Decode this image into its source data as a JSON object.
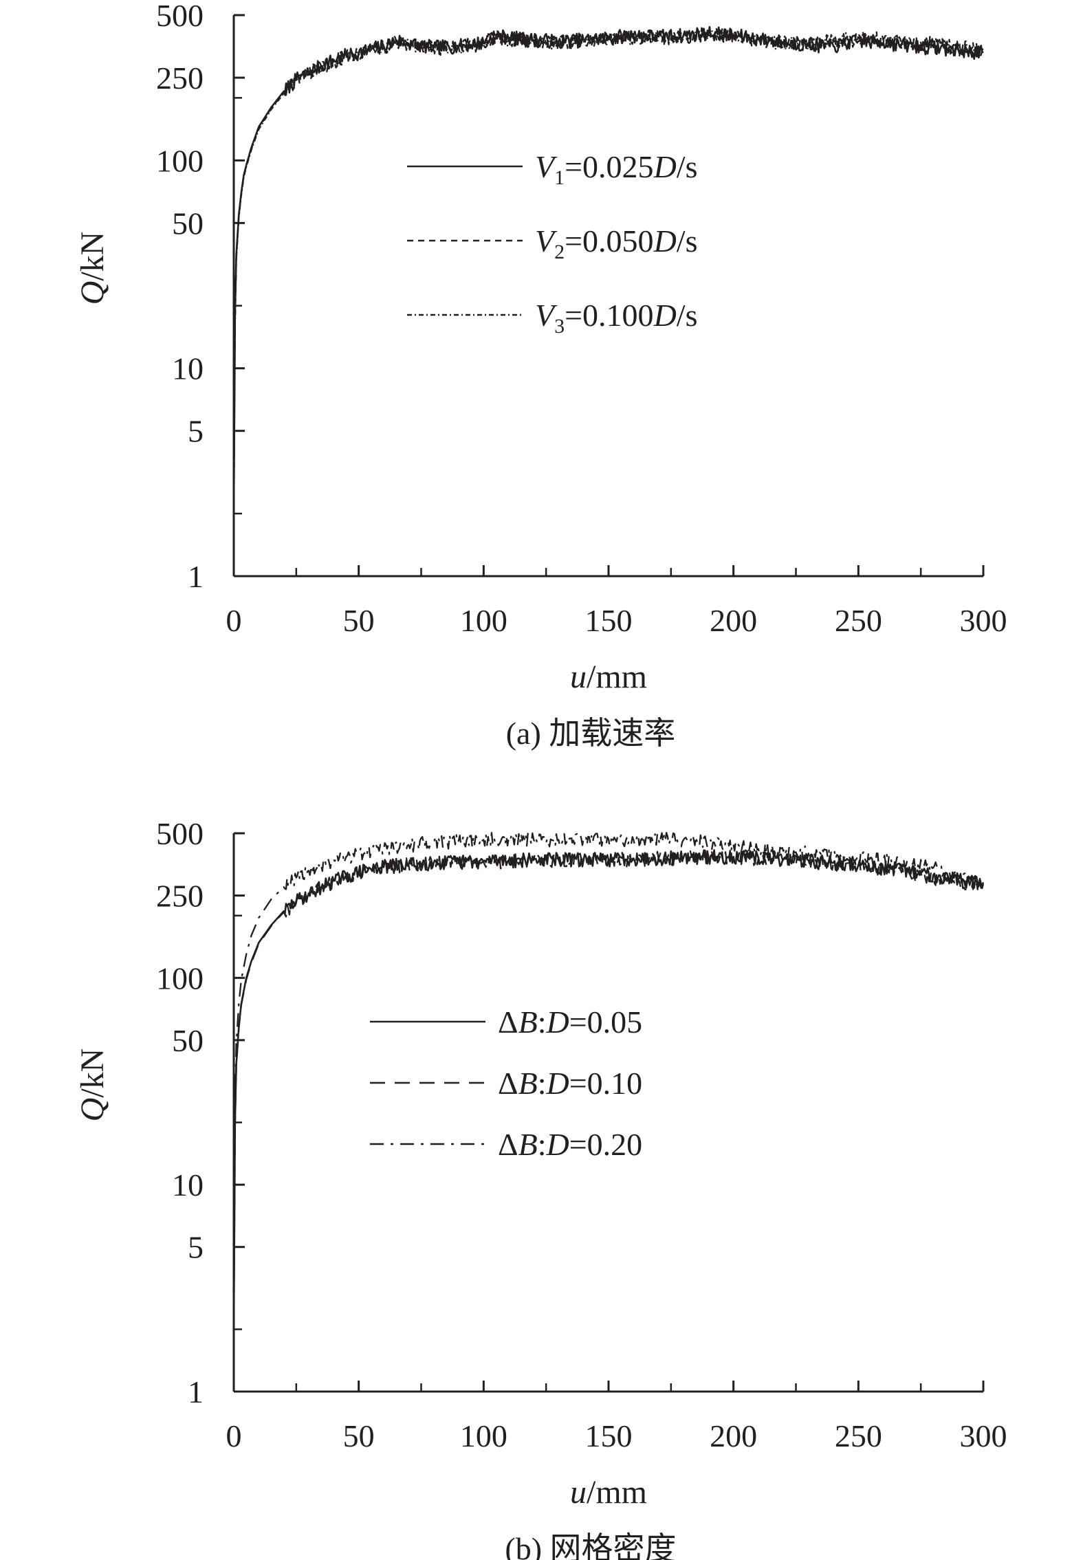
{
  "chart_data": [
    {
      "id": "a",
      "type": "line",
      "caption": "(a) 加载速率",
      "xlabel": {
        "var": "u",
        "unit": "/mm"
      },
      "ylabel": {
        "var": "Q",
        "unit": "/kN"
      },
      "xlim": [
        0,
        300
      ],
      "ylim": [
        1,
        500
      ],
      "yscale": "log",
      "xticks": [
        0,
        50,
        100,
        150,
        200,
        250,
        300
      ],
      "yticks": [
        1,
        5,
        10,
        50,
        100,
        250,
        500
      ],
      "grid": false,
      "legend_position": "center",
      "series": [
        {
          "name": "V1=0.025D/s",
          "legend": {
            "var": "V",
            "sub": "1",
            "rest": "=0.025",
            "ivar": "D",
            "tail": "/s"
          },
          "style": "solid",
          "x": [
            0,
            0.5,
            1,
            2,
            3,
            4,
            5,
            7,
            10,
            15,
            20,
            25,
            30,
            35,
            40,
            45,
            50,
            55,
            60,
            65,
            70,
            80,
            90,
            100,
            105,
            110,
            120,
            130,
            140,
            150,
            160,
            170,
            180,
            190,
            200,
            210,
            220,
            230,
            240,
            250,
            260,
            270,
            280,
            290,
            300
          ],
          "y": [
            2,
            18,
            35,
            55,
            70,
            85,
            95,
            115,
            145,
            180,
            215,
            245,
            265,
            285,
            305,
            320,
            330,
            345,
            355,
            380,
            365,
            350,
            355,
            370,
            400,
            390,
            380,
            375,
            380,
            390,
            400,
            395,
            400,
            410,
            400,
            385,
            370,
            360,
            355,
            375,
            370,
            355,
            350,
            340,
            330
          ]
        },
        {
          "name": "V2=0.050D/s",
          "legend": {
            "var": "V",
            "sub": "2",
            "rest": "=0.050",
            "ivar": "D",
            "tail": "/s"
          },
          "style": "dashed",
          "x": [
            0,
            0.5,
            1,
            2,
            3,
            4,
            5,
            7,
            10,
            15,
            20,
            25,
            30,
            35,
            40,
            45,
            50,
            55,
            60,
            65,
            70,
            80,
            90,
            100,
            105,
            110,
            120,
            130,
            140,
            150,
            160,
            170,
            180,
            190,
            200,
            210,
            220,
            230,
            240,
            250,
            260,
            270,
            280,
            290,
            300
          ],
          "y": [
            2,
            17,
            34,
            54,
            69,
            84,
            94,
            113,
            143,
            178,
            212,
            243,
            262,
            282,
            302,
            318,
            328,
            342,
            352,
            375,
            362,
            348,
            352,
            366,
            396,
            386,
            378,
            372,
            378,
            386,
            396,
            390,
            396,
            405,
            396,
            380,
            368,
            362,
            372,
            385,
            378,
            362,
            370,
            345,
            335
          ]
        },
        {
          "name": "V3=0.100D/s",
          "legend": {
            "var": "V",
            "sub": "3",
            "rest": "=0.100",
            "ivar": "D",
            "tail": "/s"
          },
          "style": "dashdot-fine",
          "x": [
            0,
            0.5,
            1,
            2,
            3,
            4,
            5,
            7,
            10,
            15,
            20,
            25,
            30,
            35,
            40,
            45,
            50,
            55,
            60,
            65,
            70,
            80,
            90,
            100,
            105,
            110,
            120,
            130,
            140,
            150,
            160,
            170,
            180,
            190,
            200,
            210,
            220,
            230,
            240,
            250,
            260,
            270,
            280,
            290,
            300
          ],
          "y": [
            2,
            16,
            33,
            53,
            68,
            83,
            93,
            112,
            141,
            176,
            210,
            240,
            258,
            280,
            300,
            315,
            326,
            340,
            350,
            372,
            360,
            346,
            350,
            364,
            394,
            384,
            376,
            370,
            376,
            384,
            394,
            388,
            394,
            402,
            394,
            378,
            366,
            365,
            375,
            390,
            382,
            365,
            360,
            350,
            340
          ]
        }
      ]
    },
    {
      "id": "b",
      "type": "line",
      "caption": "(b) 网格密度",
      "xlabel": {
        "var": "u",
        "unit": "/mm"
      },
      "ylabel": {
        "var": "Q",
        "unit": "/kN"
      },
      "xlim": [
        0,
        300
      ],
      "ylim": [
        1,
        500
      ],
      "yscale": "log",
      "xticks": [
        0,
        50,
        100,
        150,
        200,
        250,
        300
      ],
      "yticks": [
        1,
        5,
        10,
        50,
        100,
        250,
        500
      ],
      "grid": false,
      "legend_position": "center",
      "series": [
        {
          "name": "ΔB:D=0.05",
          "legend": {
            "pre": "Δ",
            "ivar": "B",
            "mid": ":",
            "ivar2": "D",
            "tail": "=0.05"
          },
          "style": "solid",
          "x": [
            0,
            0.5,
            1,
            2,
            3,
            5,
            7,
            10,
            15,
            20,
            25,
            30,
            35,
            40,
            45,
            50,
            55,
            60,
            70,
            80,
            90,
            100,
            110,
            120,
            130,
            140,
            150,
            160,
            170,
            180,
            190,
            200,
            210,
            220,
            230,
            240,
            250,
            260,
            270,
            280,
            290,
            300
          ],
          "y": [
            2,
            20,
            38,
            58,
            75,
            100,
            120,
            148,
            180,
            210,
            235,
            255,
            275,
            295,
            310,
            325,
            335,
            345,
            355,
            360,
            365,
            365,
            370,
            372,
            375,
            372,
            375,
            378,
            380,
            382,
            385,
            385,
            380,
            375,
            370,
            360,
            350,
            340,
            330,
            315,
            300,
            285
          ]
        },
        {
          "name": "ΔB:D=0.10",
          "legend": {
            "pre": "Δ",
            "ivar": "B",
            "mid": ":",
            "ivar2": "D",
            "tail": "=0.10"
          },
          "style": "dashed-long",
          "x": [
            0,
            0.5,
            1,
            2,
            3,
            5,
            7,
            10,
            15,
            20,
            25,
            30,
            35,
            40,
            45,
            50,
            55,
            60,
            70,
            80,
            90,
            100,
            110,
            120,
            130,
            140,
            150,
            160,
            170,
            180,
            190,
            200,
            210,
            220,
            230,
            240,
            250,
            260,
            270,
            280,
            290,
            300
          ],
          "y": [
            2,
            19,
            37,
            57,
            74,
            98,
            118,
            146,
            178,
            208,
            232,
            252,
            272,
            292,
            308,
            322,
            332,
            342,
            352,
            358,
            362,
            362,
            368,
            370,
            372,
            370,
            372,
            376,
            378,
            380,
            383,
            382,
            378,
            372,
            366,
            358,
            348,
            338,
            325,
            305,
            290,
            290
          ]
        },
        {
          "name": "ΔB:D=0.20",
          "legend": {
            "pre": "Δ",
            "ivar": "B",
            "mid": ":",
            "ivar2": "D",
            "tail": "=0.20"
          },
          "style": "dashdot",
          "x": [
            0,
            0.5,
            1,
            2,
            3,
            5,
            7,
            10,
            15,
            20,
            25,
            30,
            35,
            40,
            45,
            50,
            55,
            60,
            70,
            80,
            90,
            100,
            110,
            120,
            130,
            140,
            150,
            160,
            170,
            180,
            190,
            200,
            210,
            220,
            230,
            240,
            250,
            260,
            270,
            280,
            290,
            300
          ],
          "y": [
            2,
            24,
            48,
            75,
            98,
            130,
            160,
            195,
            240,
            275,
            305,
            330,
            350,
            370,
            385,
            400,
            410,
            420,
            440,
            450,
            460,
            465,
            470,
            468,
            465,
            470,
            468,
            465,
            470,
            465,
            450,
            440,
            420,
            410,
            400,
            390,
            380,
            370,
            360,
            340,
            310,
            285
          ]
        }
      ]
    }
  ]
}
